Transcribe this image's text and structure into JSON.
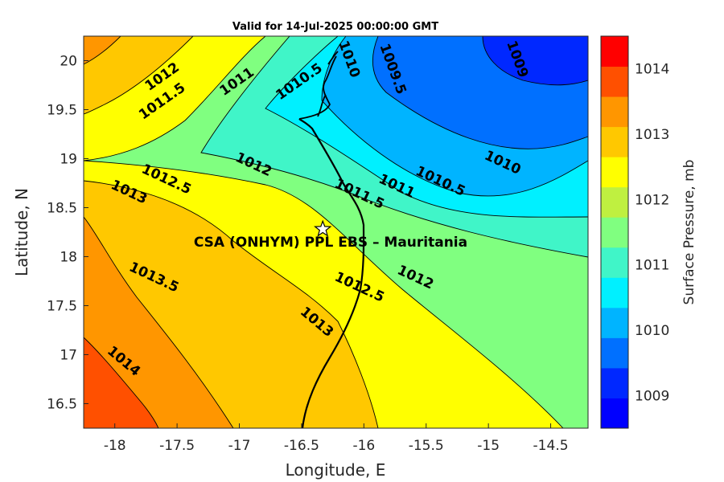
{
  "title": "Valid for 14-Jul-2025 00:00:00 GMT",
  "site_label": "CSA (ONHYM) PPL EBS  – Mauritania",
  "site": {
    "lon": -16.33,
    "lat": 18.28
  },
  "axes": {
    "xlabel": "Longitude, E",
    "ylabel": "Latitude, N",
    "xlim": [
      -18.25,
      -14.2
    ],
    "ylim": [
      16.25,
      20.25
    ],
    "xticks": [
      "-18",
      "-17.5",
      "-17",
      "-16.5",
      "-16",
      "-15.5",
      "-15",
      "-14.5"
    ],
    "yticks": [
      "16.5",
      "17",
      "17.5",
      "18",
      "18.5",
      "19",
      "19.5",
      "20"
    ]
  },
  "colorbar": {
    "label": "Surface Pressure, mb",
    "ticks": [
      "1009",
      "1010",
      "1011",
      "1012",
      "1013",
      "1014"
    ],
    "range": [
      1008.5,
      1014.5
    ],
    "colors": [
      "#0000ff",
      "#0028ff",
      "#0070ff",
      "#00b4ff",
      "#00f0ff",
      "#40f5c8",
      "#80ff80",
      "#bff040",
      "#ffff00",
      "#ffc800",
      "#ff9600",
      "#ff5000",
      "#ff0000"
    ]
  },
  "contour_labels": [
    {
      "text": "1009",
      "lon": -14.8,
      "lat": 20.0
    },
    {
      "text": "1009.5",
      "lon": -15.8,
      "lat": 19.9
    },
    {
      "text": "1010",
      "lon": -16.15,
      "lat": 20.0
    },
    {
      "text": "1010.5",
      "lon": -16.5,
      "lat": 19.75
    },
    {
      "text": "1011",
      "lon": -17.0,
      "lat": 19.75
    },
    {
      "text": "1011.5",
      "lon": -17.6,
      "lat": 19.55
    },
    {
      "text": "1012",
      "lon": -17.6,
      "lat": 19.8
    },
    {
      "text": "1012",
      "lon": -16.9,
      "lat": 18.9
    },
    {
      "text": "1012.5",
      "lon": -17.6,
      "lat": 18.75
    },
    {
      "text": "1013",
      "lon": -17.9,
      "lat": 18.62
    },
    {
      "text": "1011",
      "lon": -15.75,
      "lat": 18.68
    },
    {
      "text": "1011.5",
      "lon": -16.05,
      "lat": 18.6
    },
    {
      "text": "1010.5",
      "lon": -15.4,
      "lat": 18.73
    },
    {
      "text": "1010",
      "lon": -14.9,
      "lat": 18.92
    },
    {
      "text": "1012",
      "lon": -15.6,
      "lat": 17.75
    },
    {
      "text": "1012.5",
      "lon": -16.05,
      "lat": 17.65
    },
    {
      "text": "1013",
      "lon": -16.4,
      "lat": 17.3
    },
    {
      "text": "1013.5",
      "lon": -17.7,
      "lat": 17.75
    },
    {
      "text": "1014",
      "lon": -17.95,
      "lat": 16.9
    }
  ]
}
